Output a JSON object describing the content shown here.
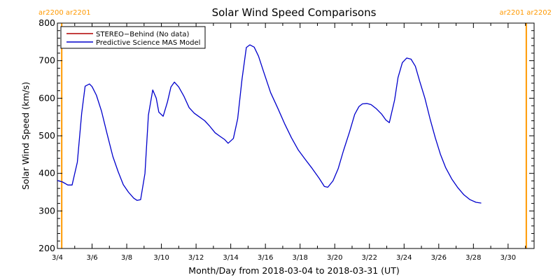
{
  "chart_data": {
    "type": "line",
    "title": "Solar Wind Speed Comparisons",
    "xlabel": "Month/Day from 2018-03-04 to 2018-03-31 (UT)",
    "ylabel": "Solar Wind Speed (km/s)",
    "ylim": [
      200,
      800
    ],
    "yticks": [
      200,
      300,
      400,
      500,
      600,
      700,
      800
    ],
    "xlim_days": [
      4.0,
      31.5
    ],
    "xticks": [
      {
        "day": 4,
        "label": "3/4"
      },
      {
        "day": 6,
        "label": "3/6"
      },
      {
        "day": 8,
        "label": "3/8"
      },
      {
        "day": 10,
        "label": "3/10"
      },
      {
        "day": 12,
        "label": "3/12"
      },
      {
        "day": 14,
        "label": "3/14"
      },
      {
        "day": 16,
        "label": "3/16"
      },
      {
        "day": 18,
        "label": "3/18"
      },
      {
        "day": 20,
        "label": "3/20"
      },
      {
        "day": 22,
        "label": "3/22"
      },
      {
        "day": 24,
        "label": "3/24"
      },
      {
        "day": 26,
        "label": "3/26"
      },
      {
        "day": 28,
        "label": "3/28"
      },
      {
        "day": 30,
        "label": "3/30"
      }
    ],
    "legend_position": "top-left",
    "colors": {
      "stereo": "#b00000",
      "mas": "#0000cc",
      "carrington": "#ff9900"
    },
    "series": [
      {
        "name": "STEREO−Behind (No data)",
        "color": "#b00000",
        "points": []
      },
      {
        "name": "Predictive Science MAS Model",
        "color": "#0000cc",
        "points": [
          [
            4.0,
            381
          ],
          [
            4.3,
            377
          ],
          [
            4.6,
            369
          ],
          [
            4.85,
            369
          ],
          [
            5.15,
            430
          ],
          [
            5.4,
            560
          ],
          [
            5.6,
            632
          ],
          [
            5.85,
            638
          ],
          [
            6.0,
            631
          ],
          [
            6.25,
            608
          ],
          [
            6.55,
            565
          ],
          [
            6.85,
            508
          ],
          [
            7.2,
            445
          ],
          [
            7.5,
            405
          ],
          [
            7.8,
            370
          ],
          [
            8.1,
            350
          ],
          [
            8.4,
            334
          ],
          [
            8.6,
            328
          ],
          [
            8.8,
            330
          ],
          [
            9.05,
            400
          ],
          [
            9.25,
            555
          ],
          [
            9.5,
            622
          ],
          [
            9.7,
            600
          ],
          [
            9.85,
            563
          ],
          [
            10.1,
            552
          ],
          [
            10.35,
            590
          ],
          [
            10.55,
            630
          ],
          [
            10.75,
            643
          ],
          [
            11.0,
            630
          ],
          [
            11.3,
            605
          ],
          [
            11.6,
            575
          ],
          [
            11.9,
            560
          ],
          [
            12.2,
            550
          ],
          [
            12.5,
            540
          ],
          [
            12.8,
            525
          ],
          [
            13.1,
            508
          ],
          [
            13.4,
            498
          ],
          [
            13.65,
            490
          ],
          [
            13.85,
            480
          ],
          [
            14.15,
            493
          ],
          [
            14.4,
            545
          ],
          [
            14.65,
            650
          ],
          [
            14.9,
            735
          ],
          [
            15.1,
            742
          ],
          [
            15.35,
            736
          ],
          [
            15.6,
            712
          ],
          [
            15.9,
            670
          ],
          [
            16.3,
            615
          ],
          [
            16.7,
            575
          ],
          [
            17.1,
            533
          ],
          [
            17.5,
            495
          ],
          [
            17.9,
            462
          ],
          [
            18.3,
            437
          ],
          [
            18.7,
            413
          ],
          [
            19.1,
            387
          ],
          [
            19.4,
            365
          ],
          [
            19.6,
            363
          ],
          [
            19.9,
            380
          ],
          [
            20.2,
            413
          ],
          [
            20.5,
            460
          ],
          [
            20.85,
            510
          ],
          [
            21.15,
            557
          ],
          [
            21.4,
            578
          ],
          [
            21.6,
            585
          ],
          [
            21.85,
            586
          ],
          [
            22.1,
            583
          ],
          [
            22.4,
            572
          ],
          [
            22.7,
            558
          ],
          [
            22.95,
            542
          ],
          [
            23.15,
            535
          ],
          [
            23.45,
            595
          ],
          [
            23.65,
            655
          ],
          [
            23.9,
            695
          ],
          [
            24.15,
            707
          ],
          [
            24.4,
            704
          ],
          [
            24.65,
            685
          ],
          [
            24.9,
            645
          ],
          [
            25.2,
            600
          ],
          [
            25.5,
            545
          ],
          [
            25.8,
            495
          ],
          [
            26.1,
            450
          ],
          [
            26.4,
            415
          ],
          [
            26.75,
            385
          ],
          [
            27.1,
            362
          ],
          [
            27.45,
            343
          ],
          [
            27.8,
            330
          ],
          [
            28.15,
            323
          ],
          [
            28.45,
            321
          ]
        ]
      }
    ],
    "vertical_markers": [
      {
        "day": 4.25,
        "label": "ar2200 ar2201"
      },
      {
        "day": 31.05,
        "label": "ar2201 ar2202"
      }
    ]
  }
}
